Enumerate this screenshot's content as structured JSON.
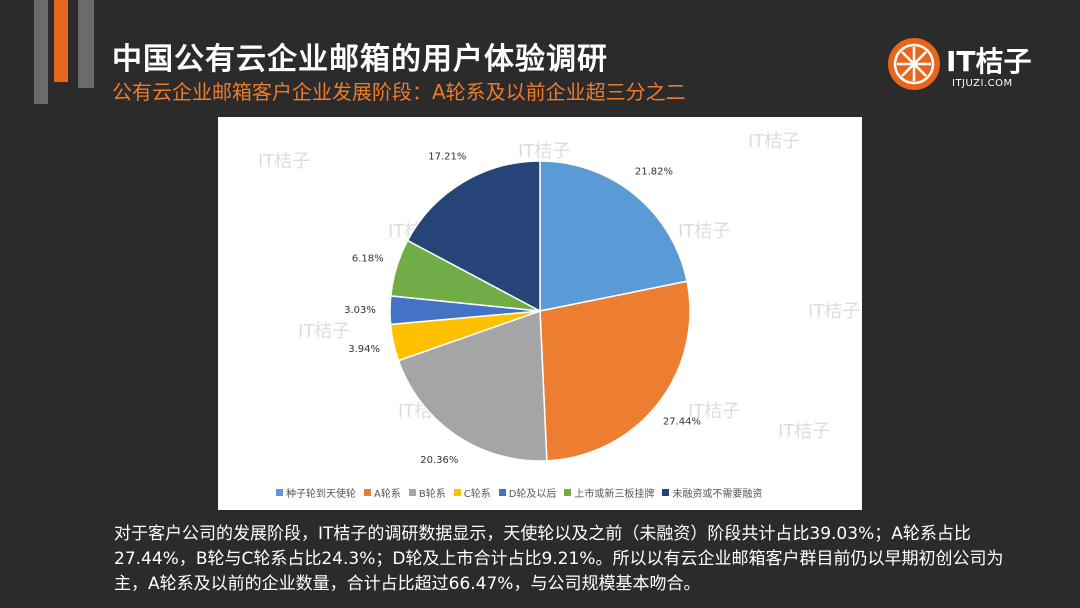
{
  "header": {
    "title": "中国公有云企业邮箱的用户体验调研",
    "subtitle": "公有云企业邮箱客户企业发展阶段：A轮系及以前企业超三分之二"
  },
  "logo": {
    "text": "IT桔子",
    "url": "ITJUZI.COM",
    "brand_color": "#e8661c"
  },
  "chart_data": {
    "type": "pie",
    "categories": [
      "种子轮到天使轮",
      "A轮系",
      "B轮系",
      "C轮系",
      "D轮及以后",
      "上市或新三板挂牌",
      "未融资或不需要融资"
    ],
    "values": [
      21.82,
      27.44,
      20.36,
      3.94,
      3.03,
      6.18,
      17.21
    ],
    "labels": [
      "21.82%",
      "27.44%",
      "20.36%",
      "3.94%",
      "3.03%",
      "6.18%",
      "17.21%"
    ],
    "colors": [
      "#5b9bd5",
      "#ed7d31",
      "#a5a5a5",
      "#ffc000",
      "#4472c4",
      "#70ad47",
      "#264478"
    ],
    "legend_position": "bottom",
    "watermark": "IT桔子"
  },
  "body_text": "对于客户公司的发展阶段，IT桔子的调研数据显示，天使轮以及之前（未融资）阶段共计占比39.03%；A轮系占比27.44%，B轮与C轮系占比24.3%；D轮及上市合计占比9.21%。所以以有云企业邮箱客户群目前仍以早期初创公司为主，A轮系及以前的企业数量，合计占比超过66.47%，与公司规模基本吻合。"
}
